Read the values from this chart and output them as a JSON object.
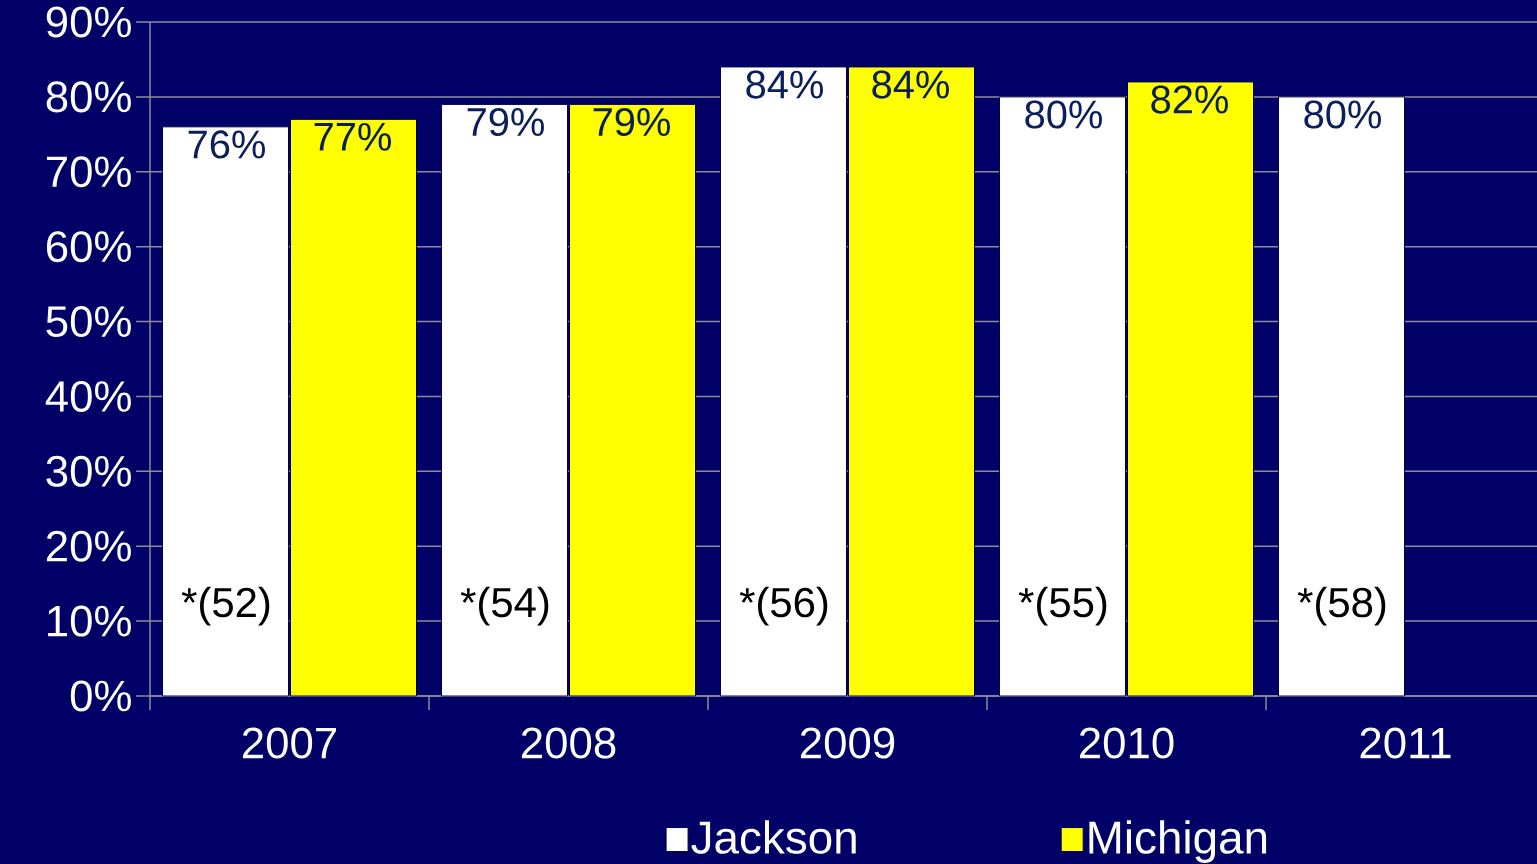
{
  "chart_data": {
    "type": "bar",
    "categories": [
      "2007",
      "2008",
      "2009",
      "2010",
      "2011"
    ],
    "series": [
      {
        "name": "Jackson",
        "color": "#ffffff",
        "values": [
          76,
          79,
          84,
          80,
          80
        ],
        "value_labels": [
          "76%",
          "79%",
          "84%",
          "80%",
          "80%"
        ]
      },
      {
        "name": "Michigan",
        "color": "#ffff00",
        "values": [
          77,
          79,
          84,
          82,
          null
        ],
        "value_labels": [
          "77%",
          "79%",
          "84%",
          "82%",
          null
        ]
      }
    ],
    "ylim": [
      0,
      90
    ],
    "yticks": [
      {
        "value": 0,
        "label": "0%"
      },
      {
        "value": 10,
        "label": "10%"
      },
      {
        "value": 20,
        "label": "20%"
      },
      {
        "value": 30,
        "label": "30%"
      },
      {
        "value": 40,
        "label": "40%"
      },
      {
        "value": 50,
        "label": "50%"
      },
      {
        "value": 60,
        "label": "60%"
      },
      {
        "value": 70,
        "label": "70%"
      },
      {
        "value": 80,
        "label": "80%"
      },
      {
        "value": 90,
        "label": "90%"
      }
    ],
    "grid": "y",
    "legend": "bottom",
    "annotations": [
      {
        "text": "*(52)",
        "x": "2007",
        "y": 12
      },
      {
        "text": "*(54)",
        "x": "2008",
        "y": 12
      },
      {
        "text": "*(56)",
        "x": "2009",
        "y": 12
      },
      {
        "text": "*(55)",
        "x": "2010",
        "y": 12
      },
      {
        "text": "*(58)",
        "x": "2011",
        "y": 12
      }
    ]
  }
}
